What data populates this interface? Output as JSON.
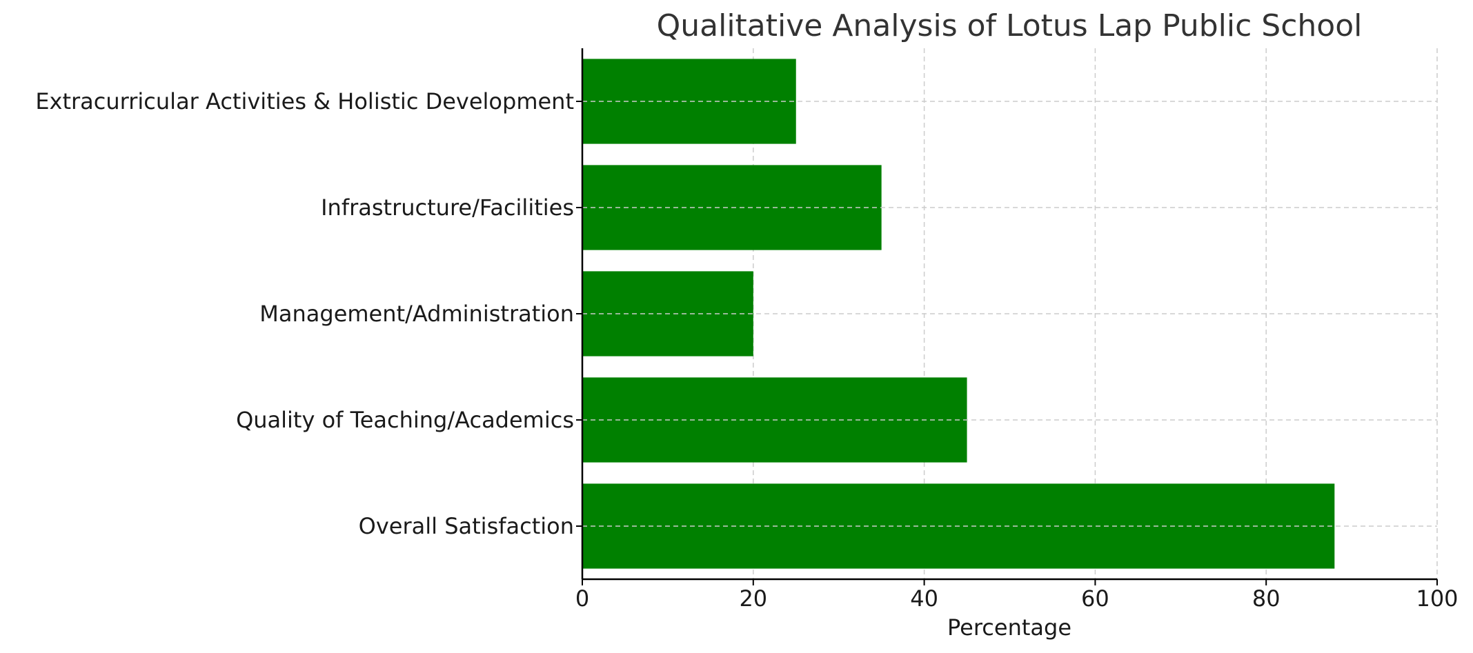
{
  "chart_data": {
    "type": "bar",
    "orientation": "horizontal",
    "title": "Qualitative Analysis of Lotus Lap Public School",
    "xlabel": "Percentage",
    "ylabel": "",
    "xlim": [
      0,
      100
    ],
    "x_ticks": [
      0,
      20,
      40,
      60,
      80,
      100
    ],
    "grid": true,
    "categories": [
      "Overall Satisfaction",
      "Quality of Teaching/Academics",
      "Management/Administration",
      "Infrastructure/Facilities",
      "Extracurricular Activities & Holistic Development"
    ],
    "values": [
      88,
      45,
      20,
      35,
      25
    ],
    "bar_color": "#008000"
  }
}
